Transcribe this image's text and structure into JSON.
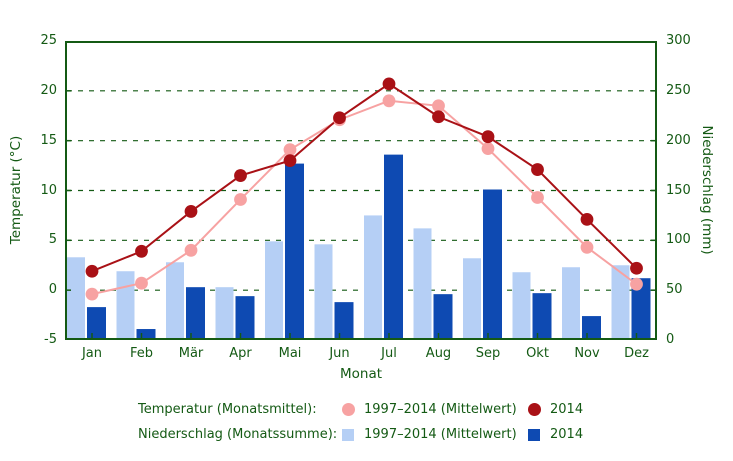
{
  "chart_data": {
    "type": "bar",
    "subtype": "combo bar+line climate chart (bars = precipitation on right axis, lines with dot markers = temperature on left axis)",
    "categories": [
      "Jan",
      "Feb",
      "Mär",
      "Apr",
      "Mai",
      "Jun",
      "Jul",
      "Aug",
      "Sep",
      "Okt",
      "Nov",
      "Dez"
    ],
    "series": [
      {
        "name": "Temperatur 1997–2014 (Mittelwert)",
        "type": "line",
        "axis": "left",
        "color_key": "pink",
        "values": [
          -0.4,
          0.7,
          4.0,
          9.1,
          14.1,
          17.1,
          19.0,
          18.5,
          14.2,
          9.3,
          4.3,
          0.6
        ]
      },
      {
        "name": "Temperatur 2014",
        "type": "line",
        "axis": "left",
        "color_key": "dark_red",
        "values": [
          1.9,
          3.9,
          7.9,
          11.5,
          13.0,
          17.3,
          20.7,
          17.4,
          15.4,
          12.1,
          7.1,
          2.2
        ]
      },
      {
        "name": "Niederschlag 1997–2014 (Mittelwert)",
        "type": "bar",
        "axis": "right",
        "color_key": "light_blue",
        "values": [
          83,
          69,
          78,
          53,
          99,
          96,
          125,
          112,
          82,
          68,
          73,
          75
        ]
      },
      {
        "name": "Niederschlag 2014",
        "type": "bar",
        "axis": "right",
        "color_key": "dark_blue",
        "values": [
          33,
          11,
          53,
          44,
          177,
          38,
          186,
          46,
          151,
          47,
          24,
          62
        ]
      }
    ],
    "left_axis": {
      "label": "Temperatur (°C)",
      "min": -5,
      "max": 25,
      "ticks": [
        25,
        20,
        15,
        10,
        5,
        0,
        -5
      ]
    },
    "right_axis": {
      "label": "Niederschlag (mm)",
      "min": 0,
      "max": 300,
      "ticks": [
        300,
        250,
        200,
        150,
        100,
        50,
        0
      ]
    },
    "x_axis": {
      "label": "Monat"
    },
    "grid": "horizontal dashed dark-green lines at 0,5,10,15,20 °C (50–250 mm)",
    "legend_position": "bottom"
  },
  "legend": {
    "rows": [
      {
        "label": "Temperatur (Monatsmittel):",
        "entries": [
          {
            "marker": "circle",
            "color_key": "pink",
            "text": "1997–2014 (Mittelwert)"
          },
          {
            "marker": "circle",
            "color_key": "dark_red",
            "text": "2014"
          }
        ]
      },
      {
        "label": "Niederschlag (Monatssumme):",
        "entries": [
          {
            "marker": "square",
            "color_key": "light_blue",
            "text": "1997–2014 (Mittelwert)"
          },
          {
            "marker": "square",
            "color_key": "dark_blue",
            "text": "2014"
          }
        ]
      }
    ]
  },
  "colors": {
    "green": "#145a14",
    "pink": "#f7a2a2",
    "dark_red": "#a91116",
    "light_blue": "#b5cff5",
    "dark_blue": "#0e4ab2",
    "background": "#ffffff"
  }
}
